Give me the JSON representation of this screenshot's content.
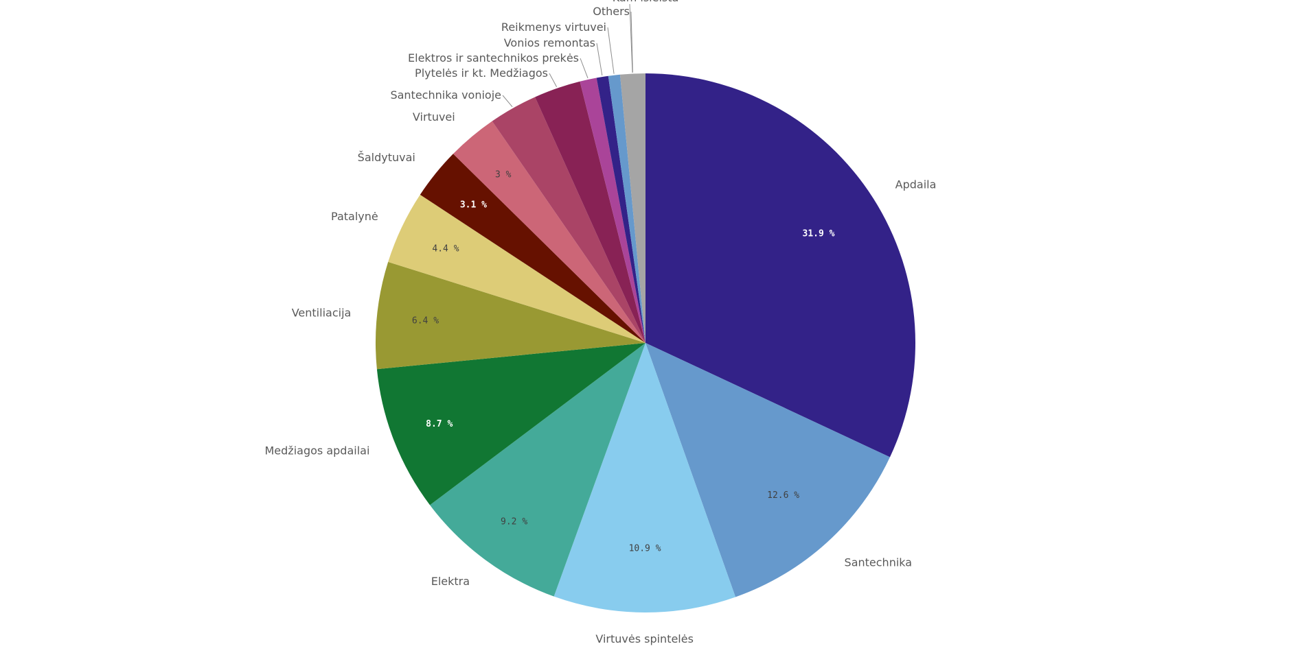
{
  "chart_data": {
    "type": "pie",
    "start_angle_deg": 0,
    "direction": "clockwise",
    "slices": [
      {
        "label": "Apdaila",
        "value": 31.9,
        "value_label": "31.9 %",
        "color": "#332288",
        "value_label_color": "#ffffff"
      },
      {
        "label": "Santechnika",
        "value": 12.6,
        "value_label": "12.6 %",
        "color": "#6699cc",
        "value_label_color": "#404040"
      },
      {
        "label": "Virtuvės spintelės",
        "value": 10.9,
        "value_label": "10.9 %",
        "color": "#88ccee",
        "value_label_color": "#404040"
      },
      {
        "label": "Elektra",
        "value": 9.2,
        "value_label": "9.2 %",
        "color": "#44aa99",
        "value_label_color": "#404040"
      },
      {
        "label": "Medžiagos apdailai",
        "value": 8.7,
        "value_label": "8.7 %",
        "color": "#117733",
        "value_label_color": "#ffffff"
      },
      {
        "label": "Ventiliacija",
        "value": 6.4,
        "value_label": "6.4 %",
        "color": "#999933",
        "value_label_color": "#404040"
      },
      {
        "label": "Patalynė",
        "value": 4.4,
        "value_label": "4.4 %",
        "color": "#ddcc77",
        "value_label_color": "#404040"
      },
      {
        "label": "Šaldytuvai",
        "value": 3.1,
        "value_label": "3.1 %",
        "color": "#661100",
        "value_label_color": "#ffffff"
      },
      {
        "label": "Virtuvei",
        "value": 3.0,
        "value_label": "3 %",
        "color": "#cc6677",
        "value_label_color": "#404040"
      },
      {
        "label": "Santechnika vonioje",
        "value": 2.9,
        "value_label": "",
        "color": "#aa4466",
        "value_label_color": "#404040"
      },
      {
        "label": "Plytelės ir kt. Medžiagos",
        "value": 2.8,
        "value_label": "",
        "color": "#882255",
        "value_label_color": "#404040"
      },
      {
        "label": "Elektros ir santechnikos prekės",
        "value": 1.0,
        "value_label": "",
        "color": "#aa4499",
        "value_label_color": "#404040"
      },
      {
        "label": "Vonios remontas",
        "value": 0.7,
        "value_label": "",
        "color": "#332288",
        "value_label_color": "#404040"
      },
      {
        "label": "Reikmenys virtuvei",
        "value": 0.7,
        "value_label": "",
        "color": "#6699cc",
        "value_label_color": "#404040"
      },
      {
        "label": "Others",
        "value": 1.5,
        "value_label": "",
        "color": "#a5a5a5",
        "value_label_color": "#404040"
      }
    ],
    "extra_labels": [
      "Kam išleista"
    ]
  }
}
